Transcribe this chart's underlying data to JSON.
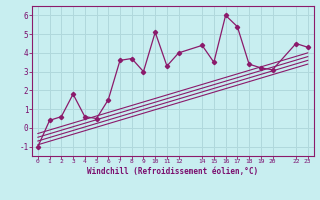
{
  "xlabel": "Windchill (Refroidissement éolien,°C)",
  "background_color": "#c8eef0",
  "grid_color": "#b0d8dc",
  "line_color": "#8b1a6b",
  "x_data": [
    0,
    1,
    2,
    3,
    4,
    5,
    6,
    7,
    8,
    9,
    10,
    11,
    12,
    14,
    15,
    16,
    17,
    18,
    19,
    20,
    22,
    23
  ],
  "y_data": [
    -1.0,
    0.4,
    0.6,
    1.8,
    0.6,
    0.5,
    1.5,
    3.6,
    3.7,
    3.0,
    5.1,
    3.3,
    4.0,
    4.4,
    3.5,
    6.0,
    5.4,
    3.4,
    3.2,
    3.1,
    4.5,
    4.3
  ],
  "reg_lines": [
    {
      "x": [
        0,
        23
      ],
      "y": [
        -0.9,
        3.4
      ]
    },
    {
      "x": [
        0,
        23
      ],
      "y": [
        -0.7,
        3.6
      ]
    },
    {
      "x": [
        0,
        23
      ],
      "y": [
        -0.5,
        3.8
      ]
    },
    {
      "x": [
        0,
        23
      ],
      "y": [
        -0.3,
        4.0
      ]
    }
  ],
  "xlim": [
    -0.5,
    23.5
  ],
  "ylim": [
    -1.5,
    6.5
  ],
  "yticks": [
    -1,
    0,
    1,
    2,
    3,
    4,
    5,
    6
  ],
  "xtick_positions": [
    0,
    1,
    2,
    3,
    4,
    5,
    6,
    7,
    8,
    9,
    10,
    11,
    12,
    14,
    15,
    16,
    17,
    18,
    19,
    20,
    22,
    23
  ],
  "xtick_labels": [
    "0",
    "1",
    "2",
    "3",
    "4",
    "5",
    "6",
    "7",
    "8",
    "9",
    "10",
    "11",
    "12",
    "14",
    "15",
    "16",
    "17",
    "18",
    "19",
    "20",
    "22",
    "23"
  ]
}
